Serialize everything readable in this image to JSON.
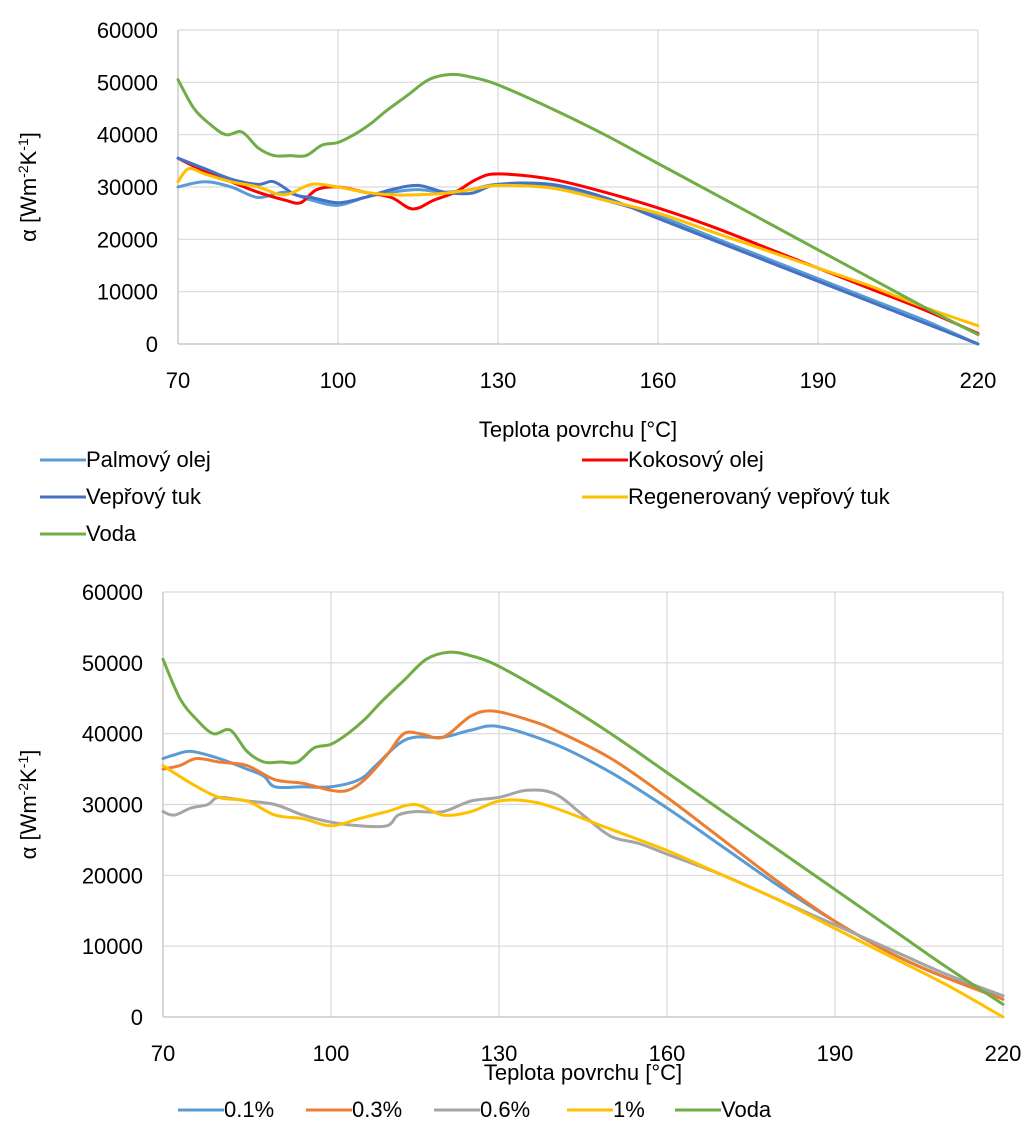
{
  "chart_data": [
    {
      "type": "line",
      "xlabel": "Teplota povrchu [°C]",
      "ylabel_main": "α [Wm",
      "ylabel_sup1": "-2",
      "ylabel_mid": "K",
      "ylabel_sup2": "-1",
      "ylabel_end": "]",
      "xlim": [
        70,
        220
      ],
      "ylim": [
        0,
        60000
      ],
      "x_ticks": [
        "70",
        "100",
        "130",
        "160",
        "190",
        "220"
      ],
      "y_ticks": [
        "0",
        "10000",
        "20000",
        "30000",
        "40000",
        "50000",
        "60000"
      ],
      "grid": true,
      "legend_position": "bottom",
      "series": [
        {
          "name": "Palmový olej",
          "color": "#5B9BD5",
          "x": [
            70,
            75,
            80,
            85,
            90,
            95,
            100,
            105,
            110,
            115,
            120,
            125,
            130,
            140,
            150,
            160,
            170,
            180,
            190,
            200,
            210,
            220
          ],
          "y": [
            30000,
            31000,
            30000,
            28000,
            29000,
            27500,
            26500,
            28000,
            29000,
            29500,
            29000,
            29500,
            30500,
            30000,
            27500,
            24500,
            20500,
            16500,
            12500,
            8500,
            4500,
            0
          ]
        },
        {
          "name": "Kokosový olej",
          "color": "#FF0000",
          "x": [
            70,
            75,
            80,
            85,
            90,
            93,
            96,
            100,
            105,
            110,
            114,
            118,
            122,
            126,
            130,
            140,
            150,
            160,
            170,
            180,
            190,
            200,
            210,
            220
          ],
          "y": [
            35500,
            33000,
            31000,
            29000,
            27500,
            27000,
            29500,
            30000,
            29000,
            28000,
            25800,
            27500,
            29000,
            31500,
            32500,
            31500,
            29000,
            26000,
            22500,
            18500,
            14500,
            10500,
            6500,
            2000
          ]
        },
        {
          "name": "Vepřový tuk",
          "color": "#4472C4",
          "x": [
            70,
            75,
            80,
            85,
            88,
            92,
            95,
            100,
            105,
            110,
            115,
            120,
            125,
            130,
            140,
            150,
            160,
            170,
            180,
            190,
            200,
            210,
            220
          ],
          "y": [
            35500,
            33500,
            31500,
            30500,
            31000,
            28500,
            28000,
            27000,
            28000,
            29500,
            30300,
            29000,
            28800,
            30500,
            30500,
            28000,
            24000,
            20000,
            16000,
            12000,
            8000,
            4000,
            0
          ]
        },
        {
          "name": "Regenerovaný vepřový tuk",
          "color": "#FFC000",
          "x": [
            70,
            72,
            75,
            80,
            85,
            90,
            95,
            100,
            105,
            110,
            115,
            120,
            125,
            130,
            140,
            150,
            160,
            170,
            180,
            190,
            200,
            210,
            220
          ],
          "y": [
            31000,
            33500,
            32500,
            31000,
            30000,
            28500,
            30500,
            30000,
            29000,
            28500,
            28500,
            28800,
            29500,
            30300,
            29800,
            27500,
            25000,
            21500,
            18000,
            14500,
            11000,
            7000,
            3500
          ]
        },
        {
          "name": "Voda",
          "color": "#70AD47",
          "x": [
            70,
            73,
            76,
            79,
            82,
            85,
            88,
            91,
            94,
            97,
            100,
            103,
            106,
            109,
            113,
            117,
            121,
            125,
            130,
            140,
            150,
            160,
            170,
            180,
            190,
            200,
            210,
            220
          ],
          "y": [
            50500,
            45000,
            42000,
            40000,
            40500,
            37500,
            36000,
            36000,
            36000,
            38000,
            38500,
            40000,
            42000,
            44500,
            47500,
            50500,
            51500,
            51000,
            49500,
            45000,
            40000,
            34500,
            29000,
            23500,
            18000,
            12500,
            7000,
            1800
          ]
        }
      ]
    },
    {
      "type": "line",
      "xlabel": "Teplota povrchu [°C]",
      "ylabel_main": "α [Wm",
      "ylabel_sup1": "-2",
      "ylabel_mid": "K",
      "ylabel_sup2": "-1",
      "ylabel_end": "]",
      "xlim": [
        70,
        220
      ],
      "ylim": [
        0,
        60000
      ],
      "x_ticks": [
        "70",
        "100",
        "130",
        "160",
        "190",
        "220"
      ],
      "y_ticks": [
        "0",
        "10000",
        "20000",
        "30000",
        "40000",
        "50000",
        "60000"
      ],
      "grid": true,
      "legend_position": "bottom",
      "series": [
        {
          "name": "0.1%",
          "color": "#5B9BD5",
          "x": [
            70,
            72,
            75,
            80,
            85,
            88,
            90,
            95,
            100,
            105,
            108,
            112,
            115,
            120,
            125,
            130,
            140,
            150,
            160,
            170,
            180,
            190,
            200,
            210,
            220
          ],
          "y": [
            36500,
            37000,
            37500,
            36500,
            35000,
            34000,
            32500,
            32500,
            32500,
            33500,
            35500,
            38500,
            39500,
            39500,
            40500,
            41000,
            38500,
            34500,
            29500,
            24000,
            18500,
            13500,
            9000,
            5500,
            3000
          ]
        },
        {
          "name": "0.3%",
          "color": "#ED7D31",
          "x": [
            70,
            73,
            76,
            80,
            85,
            90,
            95,
            100,
            103,
            106,
            110,
            113,
            116,
            120,
            125,
            129,
            135,
            140,
            150,
            160,
            170,
            180,
            190,
            200,
            210,
            220
          ],
          "y": [
            35000,
            35500,
            36500,
            36000,
            35500,
            33500,
            33000,
            32000,
            32000,
            33500,
            37000,
            40000,
            40000,
            39500,
            42500,
            43200,
            42000,
            40500,
            36500,
            31000,
            25000,
            19000,
            13500,
            9000,
            5500,
            2500
          ]
        },
        {
          "name": "0.6%",
          "color": "#A5A5A5",
          "x": [
            70,
            72,
            75,
            78,
            80,
            85,
            90,
            95,
            100,
            105,
            110,
            112,
            115,
            120,
            125,
            130,
            135,
            140,
            145,
            150,
            155,
            160,
            170,
            180,
            190,
            200,
            210,
            220
          ],
          "y": [
            29000,
            28500,
            29500,
            30000,
            31000,
            30500,
            30000,
            28500,
            27500,
            27000,
            27000,
            28500,
            29000,
            29000,
            30500,
            31000,
            32000,
            31500,
            28500,
            25500,
            24500,
            23000,
            20000,
            16500,
            13000,
            9500,
            6000,
            3000
          ]
        },
        {
          "name": "1%",
          "color": "#FFC000",
          "x": [
            70,
            75,
            80,
            85,
            90,
            95,
            100,
            105,
            110,
            115,
            120,
            125,
            130,
            135,
            140,
            150,
            160,
            170,
            180,
            190,
            200,
            210,
            220
          ],
          "y": [
            35500,
            33000,
            31000,
            30500,
            28500,
            28000,
            27000,
            28000,
            29000,
            30000,
            28500,
            29000,
            30500,
            30500,
            29500,
            26500,
            23500,
            20000,
            16500,
            12500,
            8500,
            4500,
            0
          ]
        },
        {
          "name": "Voda",
          "color": "#70AD47",
          "x": [
            70,
            73,
            76,
            79,
            82,
            85,
            88,
            91,
            94,
            97,
            100,
            103,
            106,
            109,
            113,
            117,
            121,
            125,
            130,
            140,
            150,
            160,
            170,
            180,
            190,
            200,
            210,
            220
          ],
          "y": [
            50500,
            45000,
            42000,
            40000,
            40500,
            37500,
            36000,
            36000,
            36000,
            38000,
            38500,
            40000,
            42000,
            44500,
            47500,
            50500,
            51500,
            51000,
            49500,
            45000,
            40000,
            34500,
            29000,
            23500,
            18000,
            12500,
            7000,
            1800
          ]
        }
      ]
    }
  ]
}
